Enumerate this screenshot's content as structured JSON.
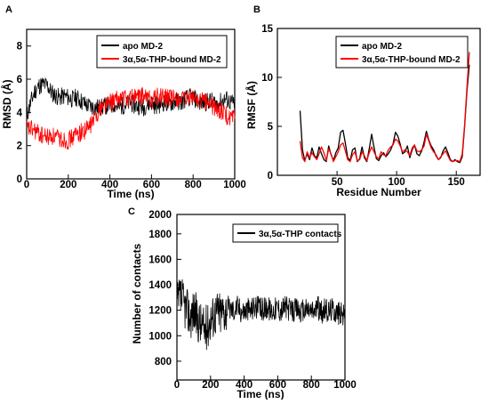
{
  "chart_data": [
    {
      "panel": "A",
      "type": "line",
      "xlabel": "Time (ns)",
      "ylabel": "RMSD (Å)",
      "xlim": [
        0,
        1000
      ],
      "ylim": [
        0,
        9
      ],
      "xticks": [
        0,
        200,
        400,
        600,
        800,
        1000
      ],
      "yticks": [
        0,
        2,
        4,
        6,
        8
      ],
      "legend_position": "top-right",
      "series": [
        {
          "name": "apo MD-2",
          "color": "#000000",
          "x": [
            0,
            20,
            40,
            60,
            80,
            100,
            120,
            140,
            160,
            180,
            200,
            220,
            240,
            260,
            280,
            300,
            320,
            340,
            360,
            380,
            400,
            420,
            440,
            460,
            480,
            500,
            520,
            540,
            560,
            580,
            600,
            620,
            640,
            660,
            680,
            700,
            720,
            740,
            760,
            780,
            800,
            820,
            840,
            860,
            880,
            900,
            920,
            940,
            960,
            980,
            1000
          ],
          "y": [
            3.8,
            4.6,
            5.3,
            5.6,
            5.7,
            5.6,
            5.2,
            5.0,
            4.9,
            5.0,
            4.9,
            4.8,
            4.9,
            4.7,
            4.5,
            4.4,
            4.3,
            4.3,
            4.3,
            4.4,
            4.4,
            4.5,
            4.3,
            4.4,
            4.5,
            4.6,
            4.4,
            4.4,
            4.3,
            4.5,
            4.6,
            4.4,
            4.5,
            4.6,
            4.5,
            4.6,
            4.7,
            4.6,
            4.8,
            4.9,
            4.9,
            4.7,
            4.6,
            4.6,
            4.7,
            4.6,
            4.5,
            4.7,
            4.8,
            4.6,
            4.5
          ]
        },
        {
          "name": "3α,5α-THP-bound MD-2",
          "color": "#ff0000",
          "x": [
            0,
            20,
            40,
            60,
            80,
            100,
            120,
            140,
            160,
            180,
            200,
            220,
            240,
            260,
            280,
            300,
            320,
            340,
            360,
            380,
            400,
            420,
            440,
            460,
            480,
            500,
            520,
            540,
            560,
            580,
            600,
            620,
            640,
            660,
            680,
            700,
            720,
            740,
            760,
            780,
            800,
            820,
            840,
            860,
            880,
            900,
            920,
            940,
            960,
            980,
            1000
          ],
          "y": [
            3.0,
            3.0,
            2.9,
            2.7,
            2.6,
            2.5,
            2.6,
            2.5,
            2.4,
            2.4,
            2.3,
            2.5,
            2.7,
            2.8,
            2.9,
            3.1,
            3.5,
            4.0,
            4.4,
            4.5,
            4.6,
            4.7,
            4.8,
            4.9,
            4.8,
            4.9,
            5.0,
            4.9,
            5.0,
            4.9,
            4.8,
            4.9,
            5.0,
            4.9,
            4.9,
            4.8,
            4.9,
            4.8,
            4.7,
            4.8,
            4.9,
            4.8,
            4.7,
            4.7,
            4.5,
            4.3,
            4.2,
            4.0,
            3.8,
            3.6,
            3.6
          ]
        }
      ]
    },
    {
      "panel": "B",
      "type": "line",
      "xlabel": "Residue Number",
      "ylabel": "RMSF (Å)",
      "xlim": [
        0,
        170
      ],
      "ylim": [
        0,
        15
      ],
      "xticks": [
        50,
        100,
        150
      ],
      "yticks": [
        0,
        5,
        10,
        15
      ],
      "legend_position": "top-right",
      "series": [
        {
          "name": "apo MD-2",
          "color": "#000000",
          "x": [
            19,
            21,
            23,
            25,
            27,
            29,
            31,
            33,
            35,
            37,
            39,
            41,
            43,
            45,
            47,
            49,
            51,
            53,
            55,
            57,
            59,
            61,
            63,
            65,
            67,
            69,
            71,
            73,
            75,
            77,
            79,
            81,
            83,
            85,
            87,
            89,
            91,
            93,
            95,
            97,
            99,
            101,
            103,
            105,
            107,
            109,
            111,
            113,
            115,
            117,
            119,
            121,
            123,
            125,
            127,
            129,
            131,
            133,
            135,
            137,
            139,
            141,
            143,
            145,
            147,
            149,
            151,
            153,
            155,
            157,
            159,
            161
          ],
          "y": [
            6.6,
            2.6,
            1.5,
            2.2,
            1.6,
            2.8,
            2.0,
            1.8,
            2.9,
            2.2,
            1.6,
            1.4,
            3.0,
            2.1,
            1.5,
            2.3,
            2.8,
            4.4,
            4.6,
            3.3,
            1.8,
            1.5,
            2.6,
            2.8,
            1.4,
            1.7,
            2.9,
            1.8,
            1.4,
            2.7,
            4.2,
            2.9,
            1.7,
            1.5,
            2.0,
            2.3,
            1.9,
            2.2,
            2.6,
            3.2,
            4.4,
            4.0,
            3.2,
            2.2,
            2.4,
            3.0,
            1.8,
            2.6,
            3.1,
            2.2,
            2.0,
            2.5,
            3.4,
            4.5,
            3.6,
            3.0,
            2.6,
            2.0,
            1.6,
            1.8,
            2.5,
            2.9,
            2.3,
            1.6,
            1.4,
            1.6,
            1.4,
            1.3,
            1.9,
            5.0,
            8.6,
            11.3
          ]
        },
        {
          "name": "3α,5α-THP-bound MD-2",
          "color": "#ff0000",
          "x": [
            19,
            21,
            23,
            25,
            27,
            29,
            31,
            33,
            35,
            37,
            39,
            41,
            43,
            45,
            47,
            49,
            51,
            53,
            55,
            57,
            59,
            61,
            63,
            65,
            67,
            69,
            71,
            73,
            75,
            77,
            79,
            81,
            83,
            85,
            87,
            89,
            91,
            93,
            95,
            97,
            99,
            101,
            103,
            105,
            107,
            109,
            111,
            113,
            115,
            117,
            119,
            121,
            123,
            125,
            127,
            129,
            131,
            133,
            135,
            137,
            139,
            141,
            143,
            145,
            147,
            149,
            151,
            153,
            155,
            157,
            159,
            161
          ],
          "y": [
            3.5,
            1.8,
            1.4,
            2.4,
            1.8,
            2.3,
            1.9,
            1.6,
            2.2,
            2.9,
            2.3,
            1.5,
            2.7,
            2.2,
            1.4,
            1.9,
            2.4,
            3.1,
            3.3,
            2.5,
            1.6,
            1.4,
            2.1,
            2.4,
            1.5,
            1.6,
            2.4,
            2.0,
            1.5,
            2.3,
            2.9,
            2.4,
            1.9,
            1.7,
            2.4,
            2.1,
            2.0,
            2.6,
            2.9,
            3.1,
            3.7,
            3.5,
            3.0,
            2.4,
            2.6,
            2.4,
            2.0,
            2.8,
            3.1,
            2.5,
            2.4,
            2.6,
            3.0,
            4.2,
            3.5,
            2.8,
            2.4,
            2.1,
            1.6,
            1.9,
            2.2,
            2.5,
            2.0,
            1.5,
            1.4,
            1.5,
            1.5,
            1.4,
            2.2,
            5.2,
            9.0,
            12.6
          ]
        }
      ]
    },
    {
      "panel": "C",
      "type": "line",
      "xlabel": "Time (ns)",
      "ylabel": "Number of contacts",
      "xlim": [
        0,
        1000
      ],
      "ylim": [
        700,
        2000
      ],
      "xticks": [
        0,
        200,
        400,
        600,
        800,
        1000
      ],
      "yticks": [
        800,
        1000,
        1200,
        1400,
        1600,
        1800,
        2000
      ],
      "legend_position": "top-right",
      "series": [
        {
          "name": "3α,5α-THP contacts",
          "color": "#000000",
          "x": [
            0,
            20,
            40,
            60,
            80,
            100,
            120,
            140,
            160,
            180,
            200,
            220,
            240,
            260,
            280,
            300,
            320,
            340,
            360,
            380,
            400,
            420,
            440,
            460,
            480,
            500,
            520,
            540,
            560,
            580,
            600,
            620,
            640,
            660,
            680,
            700,
            720,
            740,
            760,
            780,
            800,
            820,
            840,
            860,
            880,
            900,
            920,
            940,
            960,
            980,
            1000
          ],
          "y": [
            1280,
            1350,
            1300,
            1250,
            1200,
            1250,
            1180,
            1150,
            1100,
            1120,
            1180,
            1220,
            1240,
            1230,
            1250,
            1270,
            1260,
            1250,
            1280,
            1250,
            1240,
            1260,
            1250,
            1280,
            1270,
            1250,
            1260,
            1280,
            1240,
            1260,
            1270,
            1250,
            1280,
            1260,
            1240,
            1250,
            1260,
            1230,
            1250,
            1260,
            1240,
            1250,
            1270,
            1230,
            1250,
            1240,
            1260,
            1250,
            1230,
            1220,
            1200
          ]
        }
      ]
    }
  ],
  "panels": {
    "a": {
      "letter": "A",
      "xlabel": "Time (ns)",
      "ylabel": "RMSD (Å)",
      "xticks": [
        "0",
        "200",
        "400",
        "600",
        "800",
        "1000"
      ],
      "yticks": [
        "0",
        "2",
        "4",
        "6",
        "8"
      ],
      "legend": [
        "apo MD-2",
        "3α,5α-THP-bound MD-2"
      ]
    },
    "b": {
      "letter": "B",
      "xlabel": "Residue Number",
      "ylabel": "RMSF (Å)",
      "xticks": [
        "50",
        "100",
        "150"
      ],
      "yticks": [
        "0",
        "5",
        "10",
        "15"
      ],
      "legend": [
        "apo MD-2",
        "3α,5α-THP-bound MD-2"
      ]
    },
    "c": {
      "letter": "C",
      "xlabel": "Time (ns)",
      "ylabel": "Number of contacts",
      "xticks": [
        "0",
        "200",
        "400",
        "600",
        "800",
        "1000"
      ],
      "yticks": [
        "800",
        "1000",
        "1200",
        "1400",
        "1600",
        "1800",
        "2000"
      ],
      "legend": [
        "3α,5α-THP contacts"
      ]
    }
  }
}
